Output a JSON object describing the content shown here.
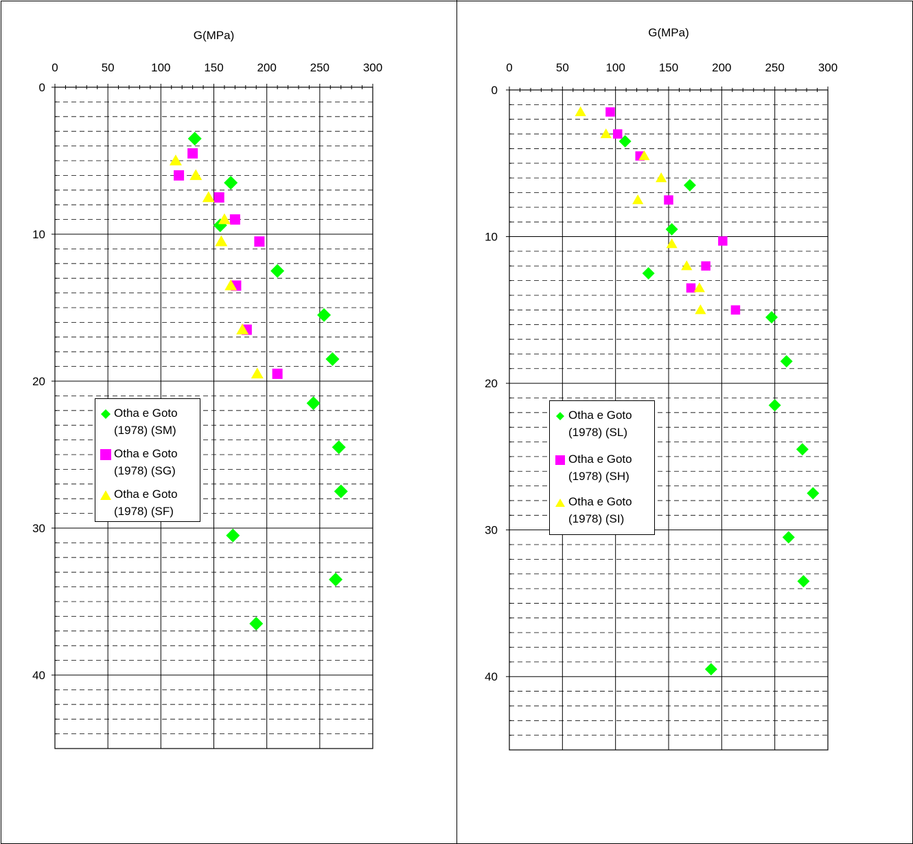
{
  "chart_data": [
    {
      "type": "scatter",
      "title": "",
      "xlabel": "G(MPa)",
      "ylabel": "",
      "x_axis_position": "top",
      "y_axis_inverted": true,
      "xlim": [
        0,
        300
      ],
      "ylim": [
        0,
        45
      ],
      "xticks": [
        "0",
        "50",
        "100",
        "150",
        "200",
        "250",
        "300"
      ],
      "yticks": [
        "0",
        "10",
        "20",
        "30",
        "40"
      ],
      "grid": {
        "major": true,
        "minor_horizontal_dashed": true
      },
      "legend_position": "left-middle",
      "series": [
        {
          "name": "Otha e Goto (1978) (SM)",
          "marker": "diamond",
          "color": "#00ff00",
          "points": [
            [
              132,
              3.5
            ],
            [
              166,
              6.5
            ],
            [
              156,
              9.4
            ],
            [
              210,
              12.5
            ],
            [
              254,
              15.5
            ],
            [
              262,
              18.5
            ],
            [
              244,
              21.5
            ],
            [
              268,
              24.5
            ],
            [
              270,
              27.5
            ],
            [
              168,
              30.5
            ],
            [
              265,
              33.5
            ],
            [
              190,
              36.5
            ]
          ]
        },
        {
          "name": "Otha e Goto (1978) (SG)",
          "marker": "square",
          "color": "#ff00ff",
          "points": [
            [
              130,
              4.5
            ],
            [
              117,
              6
            ],
            [
              155,
              7.5
            ],
            [
              170,
              9
            ],
            [
              193,
              10.5
            ],
            [
              171,
              13.5
            ],
            [
              181,
              16.5
            ],
            [
              210,
              19.5
            ]
          ]
        },
        {
          "name": "Otha e Goto (1978) (SF)",
          "marker": "triangle",
          "color": "#ffff00",
          "points": [
            [
              114,
              5
            ],
            [
              133,
              6
            ],
            [
              145,
              7.5
            ],
            [
              160,
              9
            ],
            [
              157,
              10.5
            ],
            [
              166,
              13.5
            ],
            [
              177,
              16.5
            ],
            [
              191,
              19.5
            ]
          ]
        }
      ]
    },
    {
      "type": "scatter",
      "title": "",
      "xlabel": "G(MPa)",
      "ylabel": "",
      "x_axis_position": "top",
      "y_axis_inverted": true,
      "xlim": [
        0,
        300
      ],
      "ylim": [
        0,
        45
      ],
      "xticks": [
        "0",
        "50",
        "100",
        "150",
        "200",
        "250",
        "300"
      ],
      "yticks": [
        "0",
        "10",
        "20",
        "30",
        "40"
      ],
      "grid": {
        "major": true,
        "minor_horizontal_dashed": true
      },
      "legend_position": "left-middle",
      "series": [
        {
          "name": "Otha e Goto (1978) (SL)",
          "marker": "diamond",
          "color": "#00ff00",
          "points": [
            [
              109,
              3.5
            ],
            [
              170,
              6.5
            ],
            [
              153,
              9.5
            ],
            [
              131,
              12.5
            ],
            [
              247,
              15.5
            ],
            [
              261,
              18.5
            ],
            [
              250,
              21.5
            ],
            [
              276,
              24.5
            ],
            [
              286,
              27.5
            ],
            [
              263,
              30.5
            ],
            [
              277,
              33.5
            ],
            [
              190,
              39.5
            ]
          ]
        },
        {
          "name": "Otha e Goto (1978) (SH)",
          "marker": "square",
          "color": "#ff00ff",
          "points": [
            [
              95,
              1.5
            ],
            [
              102,
              3
            ],
            [
              123,
              4.5
            ],
            [
              150,
              7.5
            ],
            [
              201,
              10.3
            ],
            [
              185,
              12
            ],
            [
              171,
              13.5
            ],
            [
              213,
              15
            ]
          ]
        },
        {
          "name": "Otha e Goto (1978) (SI)",
          "marker": "triangle",
          "color": "#ffff00",
          "points": [
            [
              67,
              1.5
            ],
            [
              91,
              3
            ],
            [
              127,
              4.5
            ],
            [
              143,
              6
            ],
            [
              121,
              7.5
            ],
            [
              153,
              10.5
            ],
            [
              167,
              12
            ],
            [
              179,
              13.5
            ],
            [
              180,
              15
            ]
          ]
        }
      ]
    }
  ]
}
